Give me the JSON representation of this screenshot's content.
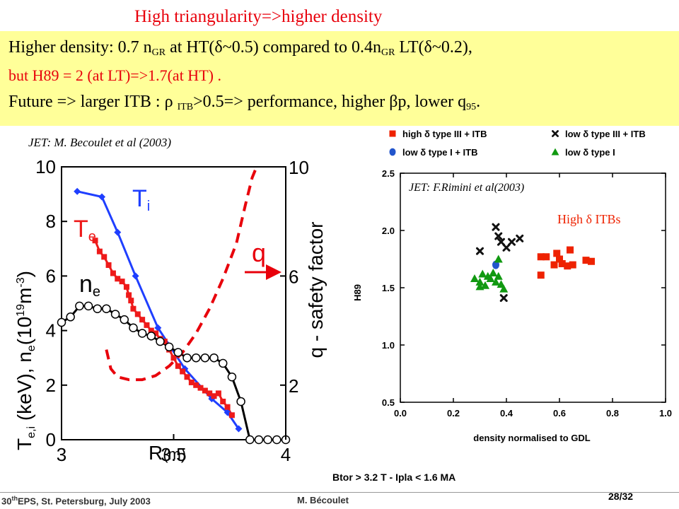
{
  "header": {
    "title": "High triangularity=>higher density",
    "line1": {
      "a": "Higher density: 0.7 n",
      "sub_a": "GR",
      "b": " at HT(δ~0.5) compared to 0.4n",
      "sub_b": "GR",
      "c": " LT(δ~0.2),"
    },
    "line2": "but H89 = 2 (at LT)=>1.7(at HT) .",
    "line3": {
      "a": "Future =>  larger ITB : ρ ",
      "sub_a": "ITB",
      "b": ">0.5=> performance, higher βp, lower q",
      "sub_b": "95",
      "c": "."
    }
  },
  "left_figure": {
    "caption": "JET: M. Becoulet et al (2003)",
    "label_ti": "T",
    "label_ti_sub": "i",
    "label_te": "T",
    "label_te_sub": "e",
    "label_ne": "n",
    "label_ne_sub": "e",
    "label_q": "q",
    "ylabel_left": "T",
    "ylabel_left_sub": "e,i",
    "ylabel_left_rest": " (keV), n",
    "ylabel_left_sub2": "e",
    "ylabel_left_rest2": "(10",
    "ylabel_left_sup": "19",
    "ylabel_left_rest3": "m",
    "ylabel_left_sup2": "-3",
    "ylabel_left_end": ")",
    "ylabel_right": "q - safety factor",
    "xlabel": "R",
    "xlabel_unit": "(m)",
    "colors": {
      "ti": "#1f3fff",
      "te": "#ee1a1a",
      "ne": "#000000",
      "q": "#e8000b"
    }
  },
  "right_figure": {
    "caption": "JET: F.Rimini et al(2003)",
    "annotation": "High δ ITBs",
    "footnote": "Btor > 3.2 T - Ipla < 1.6 MA",
    "colors": {
      "high_type3": "#ee2200",
      "low_type1_itb": "#2255cc",
      "low_type3": "#111111",
      "low_type1": "#119911"
    }
  },
  "chart_data": [
    {
      "type": "line",
      "title": "",
      "xlabel": "R(m)",
      "ylabel": "Te,i (keV), ne(10^19 m^-3)",
      "y2label": "q - safety factor",
      "xlim": [
        3,
        4
      ],
      "ylim": [
        0,
        10
      ],
      "y2lim": [
        0,
        10
      ],
      "xticks": [
        "3",
        "3.5",
        "4"
      ],
      "yticks": [
        "0",
        "2",
        "4",
        "6",
        "8",
        "10"
      ],
      "y2ticks": [
        "2",
        "6",
        "10"
      ],
      "grid": false,
      "series": [
        {
          "name": "Ti",
          "marker": "diamond",
          "axis": "left",
          "x": [
            3.07,
            3.18,
            3.25,
            3.33,
            3.43,
            3.55,
            3.67,
            3.74,
            3.79
          ],
          "y": [
            9.1,
            8.9,
            7.6,
            6.0,
            4.1,
            2.6,
            1.5,
            1.0,
            0.4
          ]
        },
        {
          "name": "Te",
          "marker": "square",
          "axis": "left",
          "x": [
            3.15,
            3.17,
            3.19,
            3.21,
            3.23,
            3.25,
            3.27,
            3.29,
            3.3,
            3.31,
            3.32,
            3.34,
            3.36,
            3.38,
            3.4,
            3.42,
            3.44,
            3.46,
            3.48,
            3.5,
            3.52,
            3.54,
            3.56,
            3.58,
            3.6,
            3.62,
            3.64,
            3.66,
            3.68,
            3.7,
            3.72,
            3.74,
            3.76
          ],
          "y": [
            7.3,
            6.9,
            6.7,
            6.4,
            6.1,
            5.9,
            5.8,
            5.6,
            5.3,
            5.1,
            4.8,
            4.6,
            4.4,
            4.2,
            4.0,
            3.9,
            3.7,
            3.6,
            3.3,
            3.0,
            2.7,
            2.5,
            2.3,
            2.1,
            2.0,
            1.9,
            1.8,
            1.7,
            1.6,
            1.7,
            1.4,
            1.2,
            0.9
          ]
        },
        {
          "name": "ne",
          "marker": "circle",
          "axis": "left",
          "x": [
            3.0,
            3.04,
            3.08,
            3.12,
            3.16,
            3.2,
            3.24,
            3.28,
            3.32,
            3.36,
            3.4,
            3.44,
            3.48,
            3.52,
            3.56,
            3.6,
            3.64,
            3.68,
            3.72,
            3.76,
            3.8,
            3.84,
            3.88,
            3.92,
            3.96,
            4.0
          ],
          "y": [
            4.3,
            4.5,
            4.9,
            4.9,
            4.8,
            4.8,
            4.6,
            4.4,
            4.1,
            3.9,
            3.8,
            3.6,
            3.4,
            3.2,
            3.0,
            3.0,
            3.0,
            3.0,
            2.8,
            2.3,
            1.4,
            0.0,
            0.0,
            0.0,
            0.0,
            0.0
          ]
        },
        {
          "name": "q",
          "style": "dashed",
          "axis": "right",
          "x": [
            3.2,
            3.22,
            3.25,
            3.3,
            3.36,
            3.42,
            3.48,
            3.54,
            3.6,
            3.66,
            3.72,
            3.78,
            3.82,
            3.85,
            3.87
          ],
          "y": [
            3.3,
            2.6,
            2.3,
            2.2,
            2.2,
            2.35,
            2.7,
            3.2,
            3.9,
            4.8,
            5.9,
            7.2,
            8.6,
            9.6,
            10.0
          ]
        }
      ],
      "annotations": [
        "Ti",
        "Te",
        "ne",
        "q"
      ]
    },
    {
      "type": "scatter",
      "title": "",
      "xlabel": "density normalised to GDL",
      "ylabel": "H89",
      "xlim": [
        0,
        1
      ],
      "ylim": [
        0.5,
        2.5
      ],
      "xticks": [
        "0.0",
        "0.2",
        "0.4",
        "0.6",
        "0.8",
        "1.0"
      ],
      "yticks": [
        "0.5",
        "1.0",
        "1.5",
        "2.0",
        "2.5"
      ],
      "legend_position": "top",
      "grid": false,
      "series": [
        {
          "name": "high δ type III + ITB",
          "marker": "square",
          "x": [
            0.53,
            0.55,
            0.58,
            0.59,
            0.6,
            0.61,
            0.63,
            0.64,
            0.65,
            0.7,
            0.72,
            0.53
          ],
          "y": [
            1.77,
            1.77,
            1.7,
            1.8,
            1.75,
            1.71,
            1.69,
            1.83,
            1.7,
            1.74,
            1.73,
            1.61
          ]
        },
        {
          "name": "low δ type I + ITB",
          "marker": "circle",
          "x": [
            0.36
          ],
          "y": [
            1.7
          ]
        },
        {
          "name": "low δ type III + ITB",
          "marker": "x",
          "x": [
            0.36,
            0.37,
            0.38,
            0.4,
            0.42,
            0.45,
            0.3,
            0.39
          ],
          "y": [
            2.03,
            1.95,
            1.9,
            1.85,
            1.9,
            1.93,
            1.82,
            1.41
          ]
        },
        {
          "name": "low δ type I",
          "marker": "triangle",
          "x": [
            0.28,
            0.3,
            0.31,
            0.32,
            0.33,
            0.34,
            0.35,
            0.36,
            0.37,
            0.38,
            0.39,
            0.3,
            0.37
          ],
          "y": [
            1.58,
            1.55,
            1.62,
            1.52,
            1.6,
            1.58,
            1.63,
            1.55,
            1.6,
            1.53,
            1.49,
            1.51,
            1.75
          ]
        }
      ],
      "annotations": [
        "JET: F.Rimini et al(2003)",
        "High δ ITBs",
        "Btor > 3.2 T - Ipla < 1.6 MA"
      ]
    }
  ],
  "footer": {
    "event": "30",
    "event_sup": "th",
    "event_rest": "EPS, St. Petersburg, July 2003",
    "author": "M. Bécoulet",
    "page": "28/32"
  }
}
